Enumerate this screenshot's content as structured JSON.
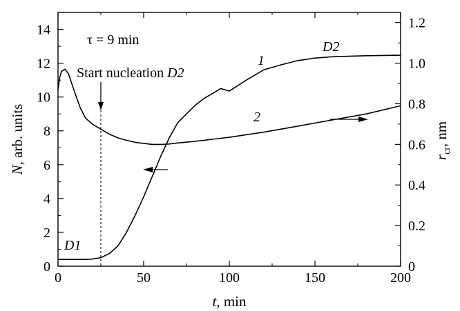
{
  "chart_data": {
    "type": "line",
    "title": "",
    "xlabel": {
      "var": "t",
      "unit": ", min"
    },
    "ylabel_left": {
      "var": "N",
      "unit": ", arb. units"
    },
    "ylabel_right": {
      "var": "r",
      "sub": "cr",
      "unit": ", nm"
    },
    "xlim": [
      0,
      200
    ],
    "ylim_left": [
      0,
      15
    ],
    "ylim_right": [
      0,
      1.25
    ],
    "x_ticks": [
      0,
      50,
      100,
      150,
      200
    ],
    "y_left_ticks": [
      0,
      2,
      4,
      6,
      8,
      10,
      12,
      14
    ],
    "y_right_ticks": [
      "0",
      "0.2",
      "0.4",
      "0.6",
      "0.8",
      "1.0",
      "1.2"
    ],
    "grid": false,
    "legend": "none",
    "series": [
      {
        "axis": "left",
        "label": "1",
        "points": [
          [
            0,
            0.4
          ],
          [
            5,
            0.4
          ],
          [
            10,
            0.4
          ],
          [
            15,
            0.4
          ],
          [
            20,
            0.42
          ],
          [
            25,
            0.5
          ],
          [
            30,
            0.75
          ],
          [
            35,
            1.2
          ],
          [
            40,
            2.0
          ],
          [
            45,
            3.0
          ],
          [
            50,
            4.1
          ],
          [
            55,
            5.3
          ],
          [
            60,
            6.5
          ],
          [
            65,
            7.6
          ],
          [
            70,
            8.5
          ],
          [
            75,
            9.0
          ],
          [
            80,
            9.5
          ],
          [
            85,
            9.9
          ],
          [
            90,
            10.2
          ],
          [
            95,
            10.5
          ],
          [
            100,
            10.35
          ],
          [
            110,
            11.0
          ],
          [
            120,
            11.6
          ],
          [
            130,
            11.9
          ],
          [
            140,
            12.15
          ],
          [
            150,
            12.3
          ],
          [
            160,
            12.38
          ],
          [
            180,
            12.44
          ],
          [
            200,
            12.47
          ]
        ]
      },
      {
        "axis": "right",
        "label": "2",
        "points": [
          [
            0,
            0.87
          ],
          [
            1,
            0.93
          ],
          [
            2,
            0.96
          ],
          [
            4,
            0.97
          ],
          [
            6,
            0.95
          ],
          [
            8,
            0.9
          ],
          [
            10,
            0.85
          ],
          [
            13,
            0.78
          ],
          [
            16,
            0.73
          ],
          [
            20,
            0.7
          ],
          [
            25,
            0.675
          ],
          [
            30,
            0.65
          ],
          [
            35,
            0.632
          ],
          [
            40,
            0.62
          ],
          [
            45,
            0.61
          ],
          [
            50,
            0.605
          ],
          [
            55,
            0.6
          ],
          [
            60,
            0.6
          ],
          [
            65,
            0.602
          ],
          [
            70,
            0.607
          ],
          [
            80,
            0.615
          ],
          [
            90,
            0.625
          ],
          [
            100,
            0.635
          ],
          [
            120,
            0.66
          ],
          [
            140,
            0.69
          ],
          [
            160,
            0.72
          ],
          [
            180,
            0.75
          ],
          [
            200,
            0.79
          ]
        ]
      }
    ],
    "annotations": {
      "tau": "τ = 9 min",
      "nucleation": {
        "text": "Start nucleation ",
        "italic": "D2",
        "x": 25
      },
      "d1": "D1",
      "d2": "D2",
      "label1": "1",
      "label2": "2"
    }
  }
}
